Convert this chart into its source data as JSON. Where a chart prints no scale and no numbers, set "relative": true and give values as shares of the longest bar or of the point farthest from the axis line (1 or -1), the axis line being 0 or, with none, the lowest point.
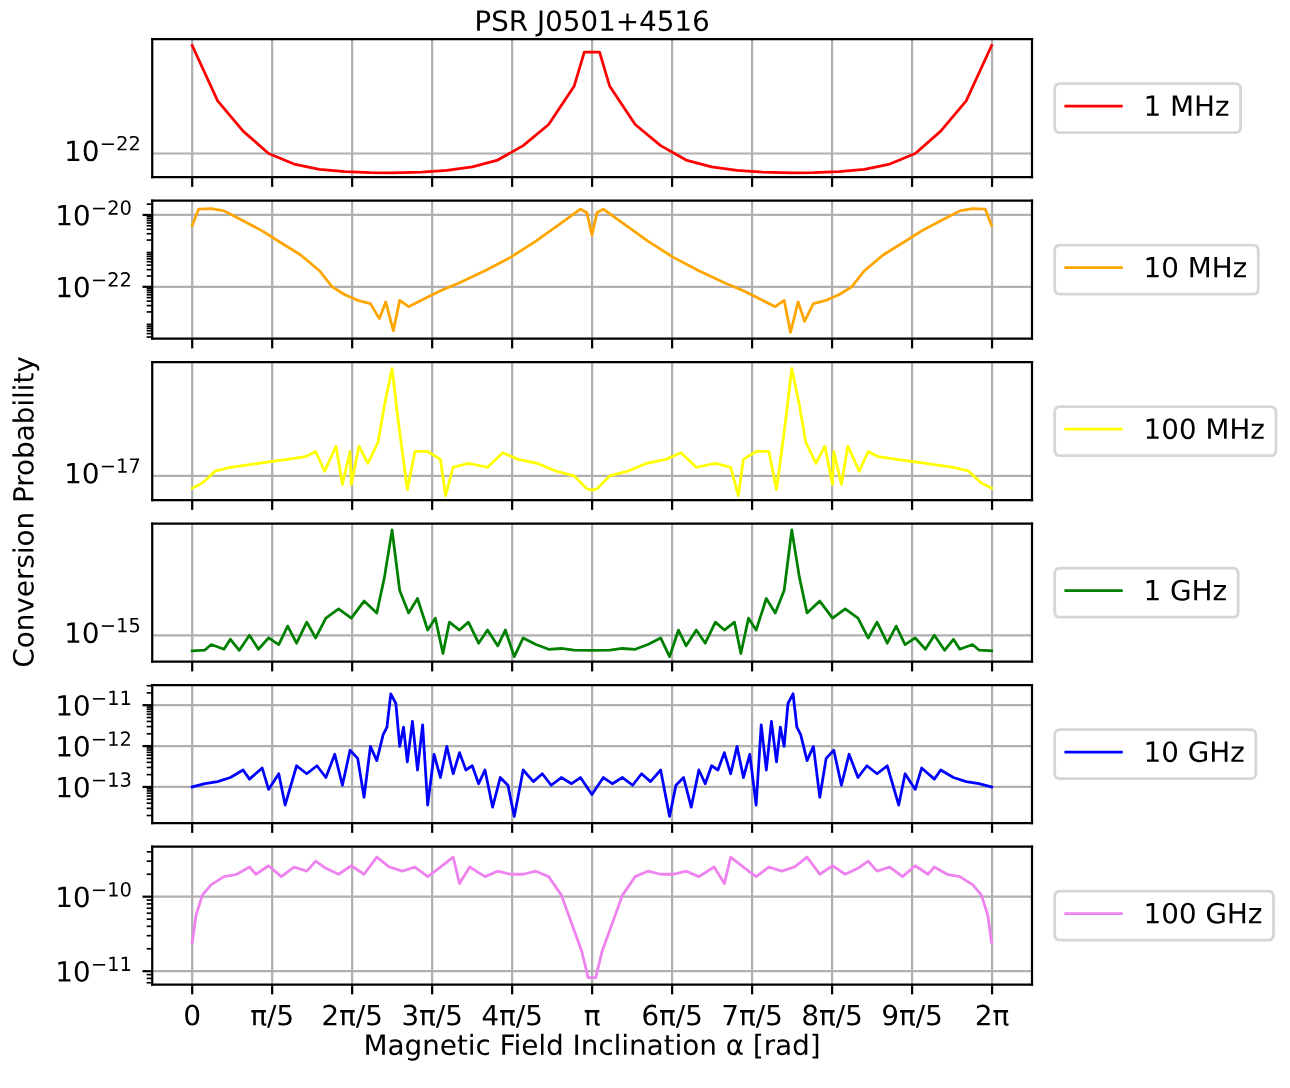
{
  "chart_data": [
    {
      "type": "line",
      "title": "PSR J0501+4516",
      "grid": true,
      "legend": "right",
      "tick_labels": false,
      "relative": true,
      "ref_lines": [
        {
          "axis": "y",
          "value": 0.18,
          "label": "10$^{−22}$",
          "color": "#b0b0b0"
        }
      ],
      "xlim": [
        -0.314,
        6.597
      ],
      "xticks": [
        {
          "value": 0,
          "label": null
        },
        {
          "value": 0.6283,
          "label": null
        },
        {
          "value": 1.2566,
          "label": null
        },
        {
          "value": 1.885,
          "label": null
        },
        {
          "value": 2.5133,
          "label": null
        },
        {
          "value": 3.1416,
          "label": null
        },
        {
          "value": 3.7699,
          "label": null
        },
        {
          "value": 4.3982,
          "label": null
        },
        {
          "value": 5.0265,
          "label": null
        },
        {
          "value": 5.6549,
          "label": null
        },
        {
          "value": 6.2832,
          "label": null
        }
      ],
      "x": [
        0,
        0.2,
        0.4,
        0.6,
        0.8,
        1.0,
        1.2,
        1.4,
        1.57,
        1.8,
        2.0,
        2.2,
        2.4,
        2.6,
        2.8,
        3.0,
        3.08,
        3.2,
        3.28,
        3.48,
        3.68,
        3.88,
        4.08,
        4.28,
        4.48,
        4.71,
        4.88,
        5.08,
        5.28,
        5.48,
        5.68,
        5.88,
        6.08,
        6.28
      ],
      "series": [
        {
          "name": "1 MHz",
          "color": "#ff0000",
          "values": [
            1,
            0.58,
            0.35,
            0.18,
            0.1,
            0.06,
            0.042,
            0.035,
            0.033,
            0.038,
            0.051,
            0.078,
            0.13,
            0.24,
            0.4,
            0.69,
            0.95,
            0.95,
            0.69,
            0.4,
            0.24,
            0.13,
            0.078,
            0.051,
            0.038,
            0.033,
            0.035,
            0.042,
            0.06,
            0.1,
            0.18,
            0.35,
            0.58,
            1
          ]
        }
      ]
    },
    {
      "type": "line",
      "log": true,
      "grid": true,
      "legend": "right",
      "tick_labels": "y",
      "xlim": [
        -0.314,
        6.597
      ],
      "xticks": [
        {
          "value": 0,
          "label": null
        },
        {
          "value": 0.6283,
          "label": null
        },
        {
          "value": 1.2566,
          "label": null
        },
        {
          "value": 1.885,
          "label": null
        },
        {
          "value": 2.5133,
          "label": null
        },
        {
          "value": 3.1416,
          "label": null
        },
        {
          "value": 3.7699,
          "label": null
        },
        {
          "value": 4.3982,
          "label": null
        },
        {
          "value": 5.0265,
          "label": null
        },
        {
          "value": 5.6549,
          "label": null
        },
        {
          "value": 6.2832,
          "label": null
        }
      ],
      "ylim": [
        3.6e-24,
        2.5e-20
      ],
      "yticks": [
        {
          "value": 1e-20,
          "label": "10$^{−20}$"
        },
        {
          "value": 1e-22,
          "label": "10$^{−22}$"
        }
      ],
      "x": [
        0,
        0.05,
        0.15,
        0.25,
        0.4,
        0.55,
        0.7,
        0.85,
        1.0,
        1.1,
        1.2,
        1.3,
        1.4,
        1.47,
        1.52,
        1.58,
        1.63,
        1.7,
        1.8,
        1.95,
        2.1,
        2.3,
        2.5,
        2.7,
        2.9,
        3.05,
        3.1,
        3.14,
        3.18,
        3.23,
        3.38,
        3.58,
        3.78,
        3.98,
        4.18,
        4.33,
        4.48,
        4.58,
        4.65,
        4.7,
        4.76,
        4.81,
        4.88,
        4.98,
        5.08,
        5.18,
        5.28,
        5.43,
        5.58,
        5.73,
        5.88,
        6.03,
        6.13,
        6.23,
        6.28
      ],
      "series": [
        {
          "name": "10 MHz",
          "color": "#ffa500",
          "values": [
            5.1e-21,
            1.45e-20,
            1.5e-20,
            1.3e-20,
            6.9e-21,
            3.6e-21,
            1.66e-21,
            7.8e-22,
            2.8e-22,
            1e-22,
            6e-23,
            4.2e-23,
            3.4e-23,
            1.3e-23,
            3.8e-23,
            6e-24,
            4.2e-23,
            2.8e-23,
            4.2e-23,
            7.8e-23,
            1.3e-22,
            2.8e-22,
            6.6e-22,
            1.86e-21,
            6e-21,
            1.45e-20,
            1.17e-20,
            2.8e-21,
            1.17e-20,
            1.45e-20,
            6e-21,
            1.86e-21,
            6.6e-22,
            2.8e-22,
            1.3e-22,
            7.8e-23,
            4.2e-23,
            2.8e-23,
            4.2e-23,
            5.4e-24,
            3.8e-23,
            1.1e-23,
            3.4e-23,
            4.2e-23,
            6e-23,
            1e-22,
            2.8e-22,
            7.8e-22,
            1.66e-21,
            3.6e-21,
            6.9e-21,
            1.3e-20,
            1.5e-20,
            1.45e-20,
            5.1e-21
          ]
        }
      ]
    },
    {
      "type": "line",
      "grid": true,
      "legend": "right",
      "tick_labels": false,
      "relative": true,
      "ref_lines": [
        {
          "axis": "y",
          "value": 0.185,
          "label": "10$^{−17}$",
          "color": "#b0b0b0"
        }
      ],
      "xlim": [
        -0.314,
        6.597
      ],
      "xticks": [
        {
          "value": 0,
          "label": null
        },
        {
          "value": 0.6283,
          "label": null
        },
        {
          "value": 1.2566,
          "label": null
        },
        {
          "value": 1.885,
          "label": null
        },
        {
          "value": 2.5133,
          "label": null
        },
        {
          "value": 3.1416,
          "label": null
        },
        {
          "value": 3.7699,
          "label": null
        },
        {
          "value": 4.3982,
          "label": null
        },
        {
          "value": 5.0265,
          "label": null
        },
        {
          "value": 5.6549,
          "label": null
        },
        {
          "value": 6.2832,
          "label": null
        }
      ],
      "x": [
        0,
        0.08,
        0.18,
        0.3,
        0.45,
        0.6,
        0.75,
        0.89,
        0.97,
        1.04,
        1.13,
        1.18,
        1.24,
        1.25,
        1.31,
        1.38,
        1.46,
        1.51,
        1.57,
        1.62,
        1.69,
        1.75,
        1.85,
        1.95,
        1.99,
        2.05,
        2.17,
        2.32,
        2.44,
        2.56,
        2.71,
        2.86,
        3.0,
        3.1,
        3.14,
        3.18,
        3.28,
        3.42,
        3.57,
        3.72,
        3.84,
        3.96,
        4.11,
        4.23,
        4.29,
        4.33,
        4.43,
        4.53,
        4.59,
        4.66,
        4.71,
        4.77,
        4.82,
        4.9,
        4.97,
        5.03,
        5.04,
        5.1,
        5.15,
        5.24,
        5.31,
        5.39,
        5.53,
        5.68,
        5.83,
        5.98,
        6.1,
        6.2,
        6.28
      ],
      "series": [
        {
          "name": "100 MHz",
          "color": "#ffff00",
          "values": [
            0.091,
            0.13,
            0.22,
            0.25,
            0.27,
            0.29,
            0.31,
            0.33,
            0.37,
            0.22,
            0.41,
            0.12,
            0.37,
            0.12,
            0.41,
            0.28,
            0.44,
            0.72,
            1,
            0.59,
            0.08,
            0.37,
            0.37,
            0.31,
            0.035,
            0.25,
            0.28,
            0.25,
            0.36,
            0.31,
            0.28,
            0.22,
            0.185,
            0.087,
            0.076,
            0.087,
            0.185,
            0.22,
            0.28,
            0.31,
            0.36,
            0.25,
            0.28,
            0.25,
            0.035,
            0.31,
            0.37,
            0.37,
            0.08,
            0.59,
            1,
            0.72,
            0.44,
            0.28,
            0.41,
            0.12,
            0.37,
            0.12,
            0.41,
            0.22,
            0.37,
            0.33,
            0.31,
            0.29,
            0.27,
            0.25,
            0.22,
            0.13,
            0.091
          ]
        }
      ]
    },
    {
      "type": "line",
      "grid": true,
      "legend": "right",
      "tick_labels": false,
      "relative": true,
      "annotations": [
        "Conversion Probability"
      ],
      "ref_lines": [
        {
          "axis": "y",
          "value": 0.2,
          "label": "10$^{−15}$",
          "color": "#b0b0b0"
        }
      ],
      "xlim": [
        -0.314,
        6.597
      ],
      "xticks": [
        {
          "value": 0,
          "label": null
        },
        {
          "value": 0.6283,
          "label": null
        },
        {
          "value": 1.2566,
          "label": null
        },
        {
          "value": 1.885,
          "label": null
        },
        {
          "value": 2.5133,
          "label": null
        },
        {
          "value": 3.1416,
          "label": null
        },
        {
          "value": 3.7699,
          "label": null
        },
        {
          "value": 4.3982,
          "label": null
        },
        {
          "value": 5.0265,
          "label": null
        },
        {
          "value": 5.6549,
          "label": null
        },
        {
          "value": 6.2832,
          "label": null
        }
      ],
      "x": [
        0,
        0.1,
        0.15,
        0.25,
        0.3,
        0.37,
        0.45,
        0.52,
        0.6,
        0.68,
        0.75,
        0.82,
        0.9,
        0.97,
        1.05,
        1.15,
        1.25,
        1.35,
        1.45,
        1.51,
        1.57,
        1.63,
        1.7,
        1.77,
        1.85,
        1.91,
        1.97,
        2.02,
        2.1,
        2.17,
        2.25,
        2.32,
        2.4,
        2.46,
        2.53,
        2.6,
        2.7,
        2.8,
        2.9,
        3.0,
        3.14,
        3.28,
        3.38,
        3.48,
        3.58,
        3.68,
        3.75,
        3.82,
        3.88,
        3.96,
        4.03,
        4.11,
        4.18,
        4.26,
        4.31,
        4.37,
        4.43,
        4.51,
        4.58,
        4.65,
        4.71,
        4.77,
        4.83,
        4.93,
        5.03,
        5.13,
        5.23,
        5.31,
        5.38,
        5.46,
        5.53,
        5.6,
        5.68,
        5.76,
        5.83,
        5.91,
        5.98,
        6.03,
        6.13,
        6.18,
        6.28
      ],
      "series": [
        {
          "name": "1 GHz",
          "color": "#008000",
          "values": [
            0.082,
            0.088,
            0.13,
            0.094,
            0.17,
            0.086,
            0.2,
            0.094,
            0.18,
            0.13,
            0.27,
            0.14,
            0.3,
            0.18,
            0.33,
            0.4,
            0.33,
            0.46,
            0.37,
            0.64,
            1,
            0.54,
            0.37,
            0.48,
            0.24,
            0.33,
            0.062,
            0.3,
            0.24,
            0.3,
            0.14,
            0.24,
            0.12,
            0.24,
            0.038,
            0.18,
            0.13,
            0.094,
            0.1,
            0.088,
            0.086,
            0.088,
            0.1,
            0.094,
            0.13,
            0.18,
            0.038,
            0.24,
            0.12,
            0.24,
            0.14,
            0.3,
            0.24,
            0.3,
            0.062,
            0.33,
            0.24,
            0.48,
            0.37,
            0.54,
            1,
            0.64,
            0.37,
            0.46,
            0.33,
            0.4,
            0.33,
            0.18,
            0.3,
            0.14,
            0.27,
            0.13,
            0.18,
            0.094,
            0.2,
            0.086,
            0.17,
            0.094,
            0.13,
            0.088,
            0.082
          ]
        }
      ]
    },
    {
      "type": "line",
      "log": true,
      "grid": true,
      "legend": "right",
      "tick_labels": "y",
      "xlim": [
        -0.314,
        6.597
      ],
      "xticks": [
        {
          "value": 0,
          "label": null
        },
        {
          "value": 0.6283,
          "label": null
        },
        {
          "value": 1.2566,
          "label": null
        },
        {
          "value": 1.885,
          "label": null
        },
        {
          "value": 2.5133,
          "label": null
        },
        {
          "value": 3.1416,
          "label": null
        },
        {
          "value": 3.7699,
          "label": null
        },
        {
          "value": 4.3982,
          "label": null
        },
        {
          "value": 5.0265,
          "label": null
        },
        {
          "value": 5.6549,
          "label": null
        },
        {
          "value": 6.2832,
          "label": null
        }
      ],
      "ylim": [
        1.3e-14,
        3.1e-11
      ],
      "yticks": [
        {
          "value": 1e-11,
          "label": "10$^{−11}$"
        },
        {
          "value": 1e-12,
          "label": "10$^{−12}$"
        },
        {
          "value": 1e-13,
          "label": "10$^{−13}$"
        }
      ],
      "x": [
        0,
        0.1,
        0.2,
        0.3,
        0.4,
        0.45,
        0.55,
        0.6,
        0.68,
        0.73,
        0.82,
        0.9,
        0.98,
        1.05,
        1.12,
        1.18,
        1.24,
        1.3,
        1.35,
        1.4,
        1.45,
        1.5,
        1.53,
        1.56,
        1.6,
        1.63,
        1.66,
        1.69,
        1.73,
        1.77,
        1.81,
        1.85,
        1.9,
        1.95,
        2.0,
        2.05,
        2.1,
        2.15,
        2.2,
        2.25,
        2.3,
        2.36,
        2.42,
        2.48,
        2.53,
        2.6,
        2.68,
        2.75,
        2.82,
        2.9,
        2.98,
        3.05,
        3.14,
        3.23,
        3.3,
        3.38,
        3.46,
        3.53,
        3.6,
        3.68,
        3.75,
        3.8,
        3.86,
        3.92,
        3.98,
        4.03,
        4.08,
        4.13,
        4.18,
        4.23,
        4.28,
        4.33,
        4.38,
        4.43,
        4.47,
        4.51,
        4.55,
        4.59,
        4.62,
        4.65,
        4.68,
        4.72,
        4.75,
        4.78,
        4.83,
        4.88,
        4.93,
        4.98,
        5.04,
        5.1,
        5.16,
        5.23,
        5.3,
        5.38,
        5.46,
        5.55,
        5.6,
        5.68,
        5.73,
        5.83,
        5.88,
        5.98,
        6.08,
        6.18,
        6.28
      ],
      "series": [
        {
          "name": "10 GHz",
          "color": "#0000ff",
          "values": [
            1e-13,
            1.2e-13,
            1.35e-13,
            1.7e-13,
            2.6e-13,
            1.55e-13,
            2.9e-13,
            8.7e-14,
            2.1e-13,
            3.6e-14,
            3.3e-13,
            2.1e-13,
            3.3e-13,
            1.7e-13,
            6.3e-13,
            1.1e-13,
            7.9e-13,
            5e-13,
            5.6e-14,
            9.8e-13,
            4.4e-13,
            1.9e-12,
            2.9e-12,
            1.9e-11,
            1.1e-11,
            9.8e-13,
            2.9e-12,
            4.1e-13,
            4e-12,
            2.6e-13,
            3.3e-12,
            3.6e-14,
            6.3e-13,
            1.7e-13,
            9.8e-13,
            2.1e-13,
            6.9e-13,
            2.6e-13,
            3.3e-13,
            1.2e-13,
            2.6e-13,
            3.2e-14,
            1.7e-13,
            1.1e-13,
            1.9e-14,
            2.6e-13,
            1.35e-13,
            2.1e-13,
            1.1e-13,
            1.7e-13,
            1.2e-13,
            1.7e-13,
            6.5e-14,
            1.7e-13,
            1.2e-13,
            1.7e-13,
            1.1e-13,
            2.1e-13,
            1.35e-13,
            2.6e-13,
            1.9e-14,
            1.1e-13,
            1.7e-13,
            3.2e-14,
            2.6e-13,
            1.2e-13,
            3.3e-13,
            2.6e-13,
            6.9e-13,
            2.1e-13,
            9.8e-13,
            1.7e-13,
            6.3e-13,
            3.6e-14,
            3.3e-12,
            2.6e-13,
            4e-12,
            4.1e-13,
            2.9e-12,
            9.8e-13,
            1.1e-11,
            1.9e-11,
            2.9e-12,
            1.9e-12,
            4.4e-13,
            9.8e-13,
            5.6e-14,
            5e-13,
            7.9e-13,
            1.1e-13,
            6.3e-13,
            1.7e-13,
            3.3e-13,
            2.1e-13,
            3.3e-13,
            3.6e-14,
            2.1e-13,
            8.7e-14,
            2.9e-13,
            1.55e-13,
            2.6e-13,
            1.7e-13,
            1.35e-13,
            1.2e-13,
            1e-13
          ]
        }
      ]
    },
    {
      "type": "line",
      "xlabel": "Magnetic Field Inclination α [rad]",
      "log": true,
      "grid": true,
      "legend": "right",
      "xlim": [
        -0.314,
        6.597
      ],
      "xticks": [
        {
          "value": 0,
          "label": "0"
        },
        {
          "value": 0.6283,
          "label": "π/5"
        },
        {
          "value": 1.2566,
          "label": "2π/5"
        },
        {
          "value": 1.885,
          "label": "3π/5"
        },
        {
          "value": 2.5133,
          "label": "4π/5"
        },
        {
          "value": 3.1416,
          "label": "π"
        },
        {
          "value": 3.7699,
          "label": "6π/5"
        },
        {
          "value": 4.3982,
          "label": "7π/5"
        },
        {
          "value": 5.0265,
          "label": "8π/5"
        },
        {
          "value": 5.6549,
          "label": "9π/5"
        },
        {
          "value": 6.2832,
          "label": "2π"
        }
      ],
      "ylim": [
        6.6e-12,
        4.7e-10
      ],
      "yticks": [
        {
          "value": 1e-10,
          "label": "10$^{−10}$"
        },
        {
          "value": 1e-11,
          "label": "10$^{−11}$"
        }
      ],
      "x": [
        0,
        0.03,
        0.08,
        0.15,
        0.25,
        0.35,
        0.45,
        0.5,
        0.6,
        0.7,
        0.8,
        0.9,
        0.97,
        1.05,
        1.15,
        1.25,
        1.35,
        1.45,
        1.55,
        1.65,
        1.75,
        1.85,
        1.95,
        2.05,
        2.1,
        2.18,
        2.3,
        2.4,
        2.5,
        2.6,
        2.7,
        2.8,
        2.9,
        2.98,
        3.06,
        3.11,
        3.14,
        3.17,
        3.22,
        3.3,
        3.38,
        3.48,
        3.58,
        3.68,
        3.78,
        3.88,
        3.98,
        4.1,
        4.18,
        4.23,
        4.33,
        4.43,
        4.53,
        4.63,
        4.73,
        4.83,
        4.93,
        5.03,
        5.13,
        5.23,
        5.31,
        5.38,
        5.48,
        5.58,
        5.68,
        5.78,
        5.83,
        5.93,
        6.03,
        6.13,
        6.2,
        6.25,
        6.28
      ],
      "series": [
        {
          "name": "100 GHz",
          "color": "#ee82ee",
          "values": [
            2.4e-11,
            5.6e-11,
            1.05e-10,
            1.45e-10,
            1.86e-10,
            2e-10,
            2.5e-10,
            2e-10,
            2.6e-10,
            1.86e-10,
            2.5e-10,
            2.2e-10,
            3e-10,
            2.4e-10,
            2e-10,
            2.6e-10,
            2e-10,
            3.4e-10,
            2.5e-10,
            2.2e-10,
            2.5e-10,
            1.86e-10,
            2.5e-10,
            3.4e-10,
            1.5e-10,
            2.5e-10,
            1.86e-10,
            2.2e-10,
            2e-10,
            2e-10,
            2.2e-10,
            1.86e-10,
            1.05e-10,
            4.4e-11,
            1.85e-11,
            8.2e-12,
            8.2e-12,
            8.2e-12,
            1.85e-11,
            4.4e-11,
            1.05e-10,
            1.86e-10,
            2.2e-10,
            2e-10,
            2e-10,
            2.2e-10,
            1.86e-10,
            2.5e-10,
            1.5e-10,
            3.4e-10,
            2.5e-10,
            1.86e-10,
            2.5e-10,
            2.2e-10,
            2.5e-10,
            3.4e-10,
            2e-10,
            2.6e-10,
            2e-10,
            2.4e-10,
            3e-10,
            2.2e-10,
            2.5e-10,
            1.86e-10,
            2.6e-10,
            2e-10,
            2.5e-10,
            2e-10,
            1.86e-10,
            1.45e-10,
            1.05e-10,
            5.6e-11,
            2.4e-11
          ]
        }
      ]
    }
  ]
}
